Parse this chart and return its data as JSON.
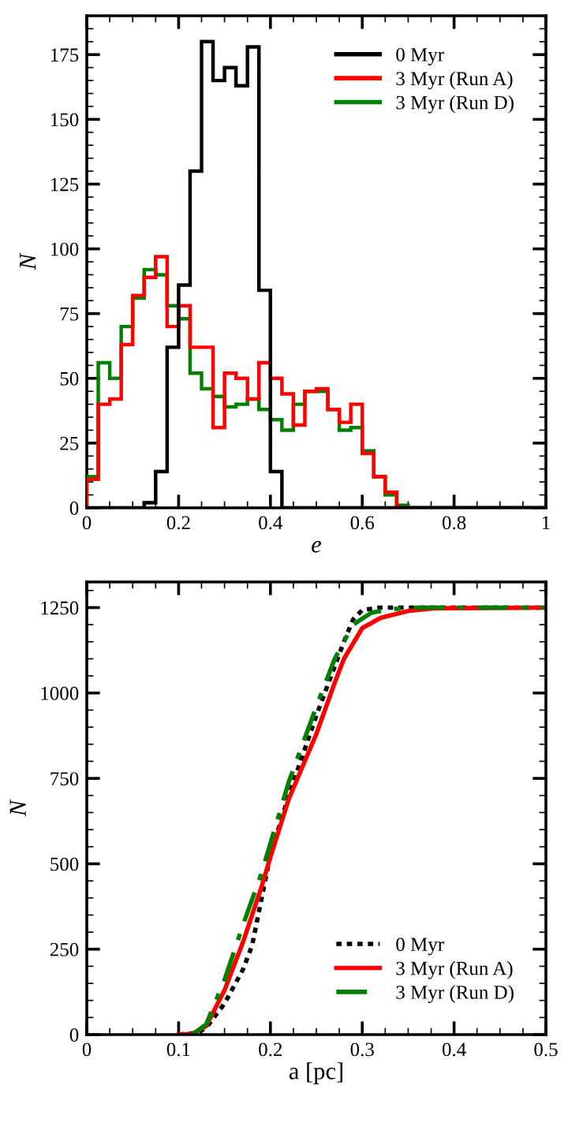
{
  "chart_data": [
    {
      "type": "histogram",
      "xlabel": "e",
      "ylabel": "N",
      "bins": [
        0,
        0.025,
        0.05,
        0.075,
        0.1,
        0.125,
        0.15,
        0.175,
        0.2,
        0.225,
        0.25,
        0.275,
        0.3,
        0.325,
        0.35,
        0.375,
        0.4,
        0.425,
        0.45,
        0.475,
        0.5,
        0.525,
        0.55,
        0.575,
        0.6,
        0.625,
        0.65,
        0.675,
        0.7,
        0.725,
        0.75,
        0.775,
        0.8,
        0.825,
        0.85,
        0.875,
        0.9,
        0.925,
        0.95,
        0.975,
        1
      ],
      "xlim": [
        0,
        1
      ],
      "ylim": [
        0,
        190
      ],
      "xticks": [
        0,
        0.2,
        0.4,
        0.6,
        0.8,
        1
      ],
      "yticks": [
        0,
        25,
        50,
        75,
        100,
        125,
        150,
        175
      ],
      "legend": "top right",
      "series": [
        {
          "name": "0 Myr",
          "color": "#000000",
          "values": [
            0,
            0,
            0,
            0,
            0,
            2,
            14,
            62,
            86,
            130,
            180,
            165,
            170,
            163,
            178,
            84,
            14,
            0,
            0,
            0,
            0,
            0,
            0,
            0,
            0,
            0,
            0,
            0,
            0,
            0,
            0,
            0,
            0,
            0,
            0,
            0,
            0,
            0,
            0,
            0
          ]
        },
        {
          "name": "3 Myr (Run A)",
          "color": "#ff0000",
          "values": [
            11,
            40,
            42,
            63,
            82,
            89,
            97,
            70,
            78,
            62,
            62,
            31,
            52,
            50,
            42,
            56,
            50,
            44,
            32,
            45,
            46,
            38,
            33,
            40,
            21,
            12,
            6,
            0,
            0,
            0,
            0,
            0,
            0,
            0,
            0,
            0,
            0,
            0,
            0,
            0
          ]
        },
        {
          "name": "3 Myr (Run D)",
          "color": "#008000",
          "values": [
            12,
            56,
            50,
            70,
            81,
            92,
            90,
            78,
            73,
            52,
            46,
            43,
            39,
            40,
            42,
            38,
            34,
            30,
            40,
            45,
            45,
            38,
            30,
            31,
            22,
            12,
            5,
            1,
            0,
            0,
            0,
            0,
            0,
            0,
            0,
            0,
            0,
            0,
            0,
            0
          ]
        }
      ]
    },
    {
      "type": "line",
      "xlabel": "a [pc]",
      "ylabel": "N",
      "xlim": [
        0,
        0.5
      ],
      "ylim": [
        0,
        1325
      ],
      "xticks": [
        0,
        0.1,
        0.2,
        0.3,
        0.4,
        0.5
      ],
      "yticks": [
        0,
        250,
        500,
        750,
        1000,
        1250
      ],
      "legend": "bottom right",
      "series": [
        {
          "name": "0 Myr",
          "color": "#000000",
          "line_style": "dotted",
          "x": [
            0.1,
            0.12,
            0.13,
            0.15,
            0.17,
            0.18,
            0.2,
            0.22,
            0.25,
            0.28,
            0.29,
            0.3,
            0.32,
            0.5
          ],
          "values": [
            0,
            5,
            20,
            91,
            190,
            260,
            527,
            700,
            934,
            1150,
            1215,
            1243,
            1250,
            1250
          ]
        },
        {
          "name": "3 Myr (Run A)",
          "color": "#ff0000",
          "line_style": "solid",
          "x": [
            0.1,
            0.115,
            0.13,
            0.15,
            0.17,
            0.19,
            0.2,
            0.22,
            0.25,
            0.27,
            0.28,
            0.3,
            0.32,
            0.35,
            0.38,
            0.5
          ],
          "values": [
            0,
            2,
            25,
            130,
            270,
            430,
            520,
            690,
            880,
            1030,
            1100,
            1190,
            1220,
            1240,
            1248,
            1250
          ]
        },
        {
          "name": "3 Myr (Run D)",
          "color": "#008000",
          "line_style": "dashed",
          "x": [
            0.115,
            0.13,
            0.15,
            0.17,
            0.19,
            0.2,
            0.22,
            0.25,
            0.27,
            0.29,
            0.31,
            0.33,
            0.36,
            0.5
          ],
          "values": [
            0,
            30,
            160,
            320,
            470,
            560,
            740,
            960,
            1100,
            1200,
            1235,
            1245,
            1250,
            1250
          ]
        }
      ]
    }
  ]
}
